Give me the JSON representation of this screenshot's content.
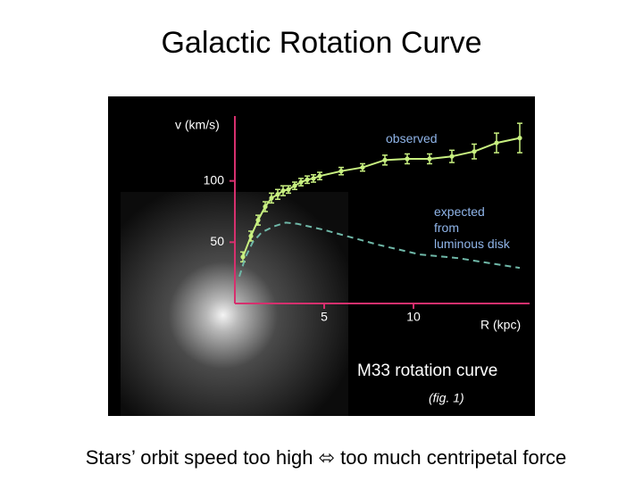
{
  "title": "Galactic Rotation Curve",
  "caption": "Stars’ orbit speed too high ⬄ too much centripetal force",
  "chart_data": {
    "type": "line",
    "title": "M33 rotation curve",
    "note": "(fig. 1)",
    "xlabel": "R (kpc)",
    "ylabel": "v (km/s)",
    "xlim": [
      0,
      16.5
    ],
    "ylim": [
      0,
      150
    ],
    "xticks": [
      5,
      10
    ],
    "yticks": [
      50,
      100
    ],
    "grid": false,
    "axis_color": "#d6306e",
    "series": [
      {
        "name": "observed",
        "color": "#c8f080",
        "x": [
          0.45,
          0.9,
          1.3,
          1.7,
          2.05,
          2.4,
          2.7,
          3.0,
          3.35,
          3.7,
          4.05,
          4.4,
          4.75,
          5.95,
          7.15,
          8.4,
          9.65,
          10.9,
          12.15,
          13.4,
          14.65,
          15.95
        ],
        "values": [
          38,
          55,
          68,
          79,
          86,
          89,
          92,
          93,
          96,
          99,
          101,
          102,
          104,
          108,
          111,
          117,
          118,
          118,
          120,
          124,
          131,
          135
        ],
        "errors": [
          4,
          4,
          4,
          4,
          4,
          4,
          4,
          3,
          3,
          3,
          3,
          3,
          3,
          3,
          3,
          4,
          4,
          4,
          5,
          6,
          8,
          12
        ]
      },
      {
        "name": "expected\nfrom\nluminous disk",
        "color": "#6fb8a8",
        "dashed": true,
        "x": [
          0.25,
          0.6,
          1.0,
          1.5,
          2.2,
          2.85,
          3.5,
          5.0,
          6.5,
          8.0,
          10.35,
          12.5,
          15.95
        ],
        "values": [
          22,
          38,
          50,
          58,
          63,
          66,
          65,
          60,
          54,
          48,
          40,
          37,
          29
        ]
      }
    ]
  }
}
